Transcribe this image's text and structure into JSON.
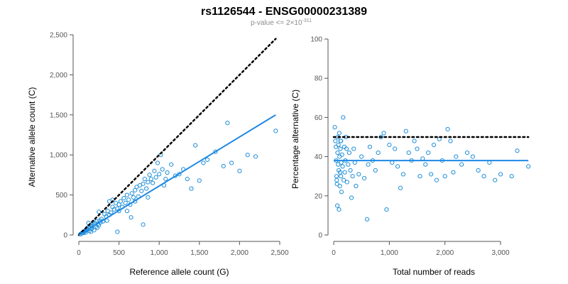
{
  "header": {
    "title": "rs1126544 - ENSG00000231389",
    "subtitle_prefix": "p-value <= 2×10",
    "subtitle_exponent": "-311"
  },
  "colors": {
    "points": "#1f8fd8",
    "fit_line": "#1e88e5",
    "reference_line": "#000000",
    "axis": "#555555"
  },
  "chart_data": [
    {
      "type": "scatter",
      "xlabel": "Reference allele count (G)",
      "ylabel": "Alternative allele count (C)",
      "xlim": [
        0,
        2500
      ],
      "ylim": [
        0,
        2500
      ],
      "x_ticks": [
        0,
        500,
        1000,
        1500,
        2000,
        2500
      ],
      "x_tick_labels": [
        "0",
        "500",
        "1,000",
        "1,500",
        "2,000",
        "2,500"
      ],
      "y_ticks": [
        0,
        500,
        1000,
        1500,
        2000,
        2500
      ],
      "y_tick_labels": [
        "0",
        "500",
        "1,000",
        "1,500",
        "2,000",
        "2,500"
      ],
      "reference_line": {
        "style": "dotted",
        "points": [
          [
            0,
            0
          ],
          [
            2450,
            2450
          ]
        ]
      },
      "fit_line": {
        "style": "solid",
        "points": [
          [
            0,
            0
          ],
          [
            2450,
            1500
          ]
        ]
      },
      "points": [
        [
          20,
          10
        ],
        [
          35,
          20
        ],
        [
          45,
          30
        ],
        [
          55,
          25
        ],
        [
          60,
          45
        ],
        [
          70,
          40
        ],
        [
          80,
          55
        ],
        [
          85,
          30
        ],
        [
          95,
          60
        ],
        [
          100,
          80
        ],
        [
          110,
          70
        ],
        [
          120,
          100
        ],
        [
          130,
          50
        ],
        [
          140,
          90
        ],
        [
          150,
          120
        ],
        [
          160,
          75
        ],
        [
          170,
          110
        ],
        [
          180,
          130
        ],
        [
          190,
          60
        ],
        [
          200,
          150
        ],
        [
          210,
          100
        ],
        [
          220,
          170
        ],
        [
          230,
          90
        ],
        [
          240,
          140
        ],
        [
          250,
          120
        ],
        [
          260,
          180
        ],
        [
          270,
          160
        ],
        [
          280,
          200
        ],
        [
          300,
          170
        ],
        [
          320,
          260
        ],
        [
          340,
          230
        ],
        [
          360,
          300
        ],
        [
          380,
          250
        ],
        [
          400,
          280
        ],
        [
          420,
          350
        ],
        [
          440,
          320
        ],
        [
          460,
          400
        ],
        [
          480,
          330
        ],
        [
          500,
          380
        ],
        [
          520,
          420
        ],
        [
          540,
          350
        ],
        [
          560,
          460
        ],
        [
          580,
          400
        ],
        [
          600,
          500
        ],
        [
          620,
          440
        ],
        [
          640,
          380
        ],
        [
          660,
          520
        ],
        [
          680,
          470
        ],
        [
          700,
          560
        ],
        [
          720,
          600
        ],
        [
          740,
          480
        ],
        [
          760,
          620
        ],
        [
          780,
          550
        ],
        [
          800,
          640
        ],
        [
          820,
          700
        ],
        [
          840,
          580
        ],
        [
          860,
          660
        ],
        [
          880,
          750
        ],
        [
          900,
          700
        ],
        [
          920,
          650
        ],
        [
          940,
          800
        ],
        [
          960,
          720
        ],
        [
          980,
          900
        ],
        [
          1000,
          760
        ],
        [
          1020,
          1000
        ],
        [
          1040,
          820
        ],
        [
          1060,
          620
        ],
        [
          1080,
          700
        ],
        [
          1100,
          780
        ],
        [
          1150,
          880
        ],
        [
          1200,
          740
        ],
        [
          1250,
          760
        ],
        [
          1300,
          820
        ],
        [
          1350,
          700
        ],
        [
          1400,
          580
        ],
        [
          1450,
          1120
        ],
        [
          1500,
          680
        ],
        [
          1550,
          900
        ],
        [
          1600,
          940
        ],
        [
          1700,
          1040
        ],
        [
          1800,
          860
        ],
        [
          1850,
          1400
        ],
        [
          1900,
          900
        ],
        [
          2000,
          800
        ],
        [
          2100,
          1000
        ],
        [
          2200,
          980
        ],
        [
          2450,
          1300
        ],
        [
          480,
          40
        ],
        [
          800,
          130
        ],
        [
          650,
          220
        ],
        [
          350,
          180
        ],
        [
          250,
          290
        ],
        [
          380,
          420
        ],
        [
          420,
          440
        ],
        [
          150,
          40
        ],
        [
          120,
          150
        ],
        [
          500,
          300
        ],
        [
          600,
          300
        ],
        [
          700,
          420
        ],
        [
          860,
          470
        ]
      ]
    },
    {
      "type": "scatter",
      "xlabel": "Total number of reads",
      "ylabel": "Percentage alternative (C)",
      "xlim": [
        0,
        3600
      ],
      "ylim": [
        0,
        100
      ],
      "x_ticks": [
        0,
        1000,
        2000,
        3000
      ],
      "x_tick_labels": [
        "0",
        "1,000",
        "2,000",
        "3,000"
      ],
      "y_ticks": [
        0,
        20,
        40,
        60,
        80,
        100
      ],
      "y_tick_labels": [
        "0",
        "20",
        "40",
        "60",
        "80",
        "100"
      ],
      "reference_line": {
        "style": "dotted",
        "points": [
          [
            0,
            50
          ],
          [
            3500,
            50
          ]
        ]
      },
      "fit_line": {
        "style": "solid",
        "points": [
          [
            0,
            38
          ],
          [
            3500,
            38
          ]
        ]
      },
      "points": [
        [
          20,
          55
        ],
        [
          30,
          48
        ],
        [
          40,
          45
        ],
        [
          45,
          38
        ],
        [
          50,
          30
        ],
        [
          55,
          28
        ],
        [
          60,
          26
        ],
        [
          65,
          15
        ],
        [
          70,
          42
        ],
        [
          75,
          50
        ],
        [
          80,
          36
        ],
        [
          85,
          46
        ],
        [
          90,
          33
        ],
        [
          95,
          13
        ],
        [
          100,
          52
        ],
        [
          105,
          40
        ],
        [
          110,
          25
        ],
        [
          115,
          32
        ],
        [
          120,
          44
        ],
        [
          125,
          48
        ],
        [
          130,
          30
        ],
        [
          135,
          37
        ],
        [
          140,
          22
        ],
        [
          150,
          41
        ],
        [
          160,
          35
        ],
        [
          170,
          60
        ],
        [
          180,
          28
        ],
        [
          190,
          45
        ],
        [
          200,
          32
        ],
        [
          210,
          38
        ],
        [
          220,
          50
        ],
        [
          240,
          27
        ],
        [
          260,
          36
        ],
        [
          280,
          42
        ],
        [
          300,
          33
        ],
        [
          320,
          19
        ],
        [
          340,
          30
        ],
        [
          360,
          44
        ],
        [
          380,
          37
        ],
        [
          400,
          25
        ],
        [
          450,
          31
        ],
        [
          500,
          40
        ],
        [
          550,
          29
        ],
        [
          600,
          8
        ],
        [
          620,
          36
        ],
        [
          650,
          45
        ],
        [
          700,
          38
        ],
        [
          750,
          33
        ],
        [
          800,
          42
        ],
        [
          850,
          50
        ],
        [
          900,
          52
        ],
        [
          950,
          13
        ],
        [
          1000,
          46
        ],
        [
          1050,
          37
        ],
        [
          1100,
          44
        ],
        [
          1150,
          35
        ],
        [
          1200,
          24
        ],
        [
          1250,
          31
        ],
        [
          1300,
          53
        ],
        [
          1350,
          42
        ],
        [
          1400,
          38
        ],
        [
          1450,
          48
        ],
        [
          1500,
          44
        ],
        [
          1550,
          30
        ],
        [
          1600,
          39
        ],
        [
          1650,
          36
        ],
        [
          1700,
          42
        ],
        [
          1750,
          31
        ],
        [
          1800,
          46
        ],
        [
          1850,
          28
        ],
        [
          1900,
          49
        ],
        [
          1950,
          38
        ],
        [
          2000,
          30
        ],
        [
          2050,
          54
        ],
        [
          2100,
          48
        ],
        [
          2150,
          32
        ],
        [
          2200,
          40
        ],
        [
          2300,
          36
        ],
        [
          2400,
          42
        ],
        [
          2500,
          40
        ],
        [
          2600,
          33
        ],
        [
          2700,
          30
        ],
        [
          2800,
          37
        ],
        [
          2900,
          28
        ],
        [
          3000,
          31
        ],
        [
          3200,
          30
        ],
        [
          3300,
          43
        ],
        [
          3500,
          35
        ],
        [
          130,
          48
        ],
        [
          230,
          44
        ]
      ]
    }
  ]
}
